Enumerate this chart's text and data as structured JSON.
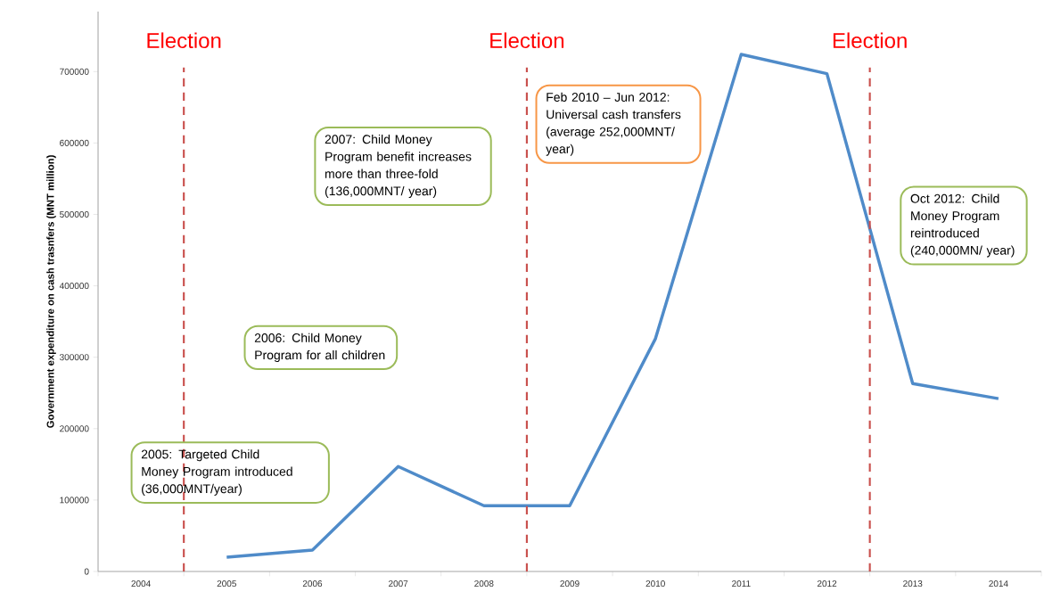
{
  "chart_data": {
    "type": "line",
    "ylabel": "Government expenditure on cash trasnfers (MNT million)",
    "x": [
      2005,
      2006,
      2007,
      2008,
      2009,
      2010,
      2011,
      2012,
      2013,
      2014
    ],
    "xlim": [
      2003.5,
      2014.5
    ],
    "xticks": [
      2004,
      2005,
      2006,
      2007,
      2008,
      2009,
      2010,
      2011,
      2012,
      2013,
      2014
    ],
    "ylim": [
      0,
      784000
    ],
    "yticks": [
      0,
      100000,
      200000,
      300000,
      400000,
      500000,
      600000,
      700000
    ],
    "series": [
      {
        "color": "#4f8bc9",
        "values": [
          20000,
          30000,
          147000,
          92000,
          92000,
          326000,
          724000,
          697000,
          263000,
          242000
        ]
      }
    ],
    "ref_lines": [
      {
        "axis": "x",
        "value": 2004.5,
        "label": "Election",
        "color": "#c9504d",
        "line_style": "dashed"
      },
      {
        "axis": "x",
        "value": 2008.5,
        "label": "Election",
        "color": "#c9504d",
        "line_style": "dashed"
      },
      {
        "axis": "x",
        "value": 2012.5,
        "label": "Election",
        "color": "#c9504d",
        "line_style": "dashed"
      }
    ],
    "annotations": [
      "2005: Targeted Child Money Program introduced (36,000MNT/year)",
      "2006: Child Money Program for all children",
      "2007: Child Money Program benefit increases more than three-fold (136,000MNT/ year)",
      "Feb 2010 – Jun 2012: Universal cash transfers (average 252,000MNT/ year)",
      "Oct 2012: Child Money Program reintroduced (240,000MN/ year)"
    ],
    "grid": false,
    "marker": "none",
    "line_style": "solid"
  }
}
